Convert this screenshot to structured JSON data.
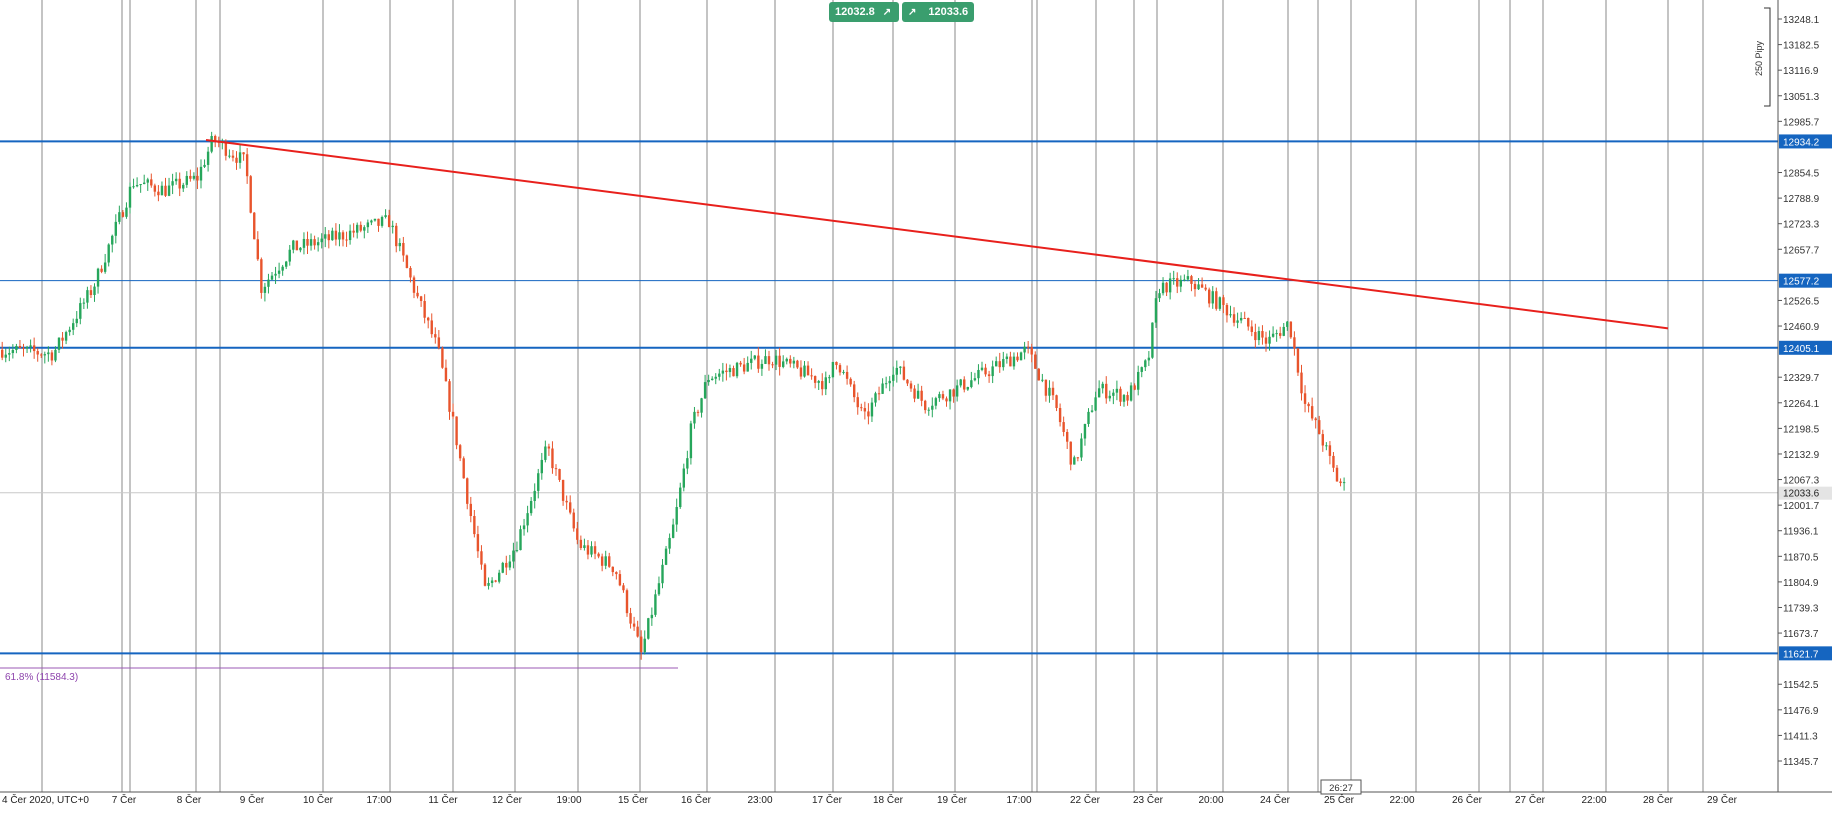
{
  "quote_bar": {
    "bid": "12032.8",
    "ask": "12033.6",
    "sell_icon": "arrow-up-right-icon",
    "buy_icon": "arrow-up-right-icon"
  },
  "scale_bar": {
    "label": "250 Pipy"
  },
  "countdown": "26:27",
  "fib_label": "61.8% (11584.3)",
  "chart_data": {
    "type": "candlestick",
    "title": "",
    "y_axis": {
      "range": [
        11300,
        13290
      ],
      "ticks": [
        "13248.1",
        "13182.5",
        "13116.9",
        "13051.3",
        "12985.7",
        "12854.5",
        "12788.9",
        "12723.3",
        "12657.7",
        "12526.5",
        "12460.9",
        "12329.7",
        "12264.1",
        "12198.5",
        "12132.9",
        "12067.3",
        "12001.7",
        "11936.1",
        "11870.5",
        "11804.9",
        "11739.3",
        "11673.7",
        "11542.5",
        "11476.9",
        "11411.3",
        "11345.7"
      ]
    },
    "x_axis": {
      "labels": [
        "4 Čer 2020, UTC+0",
        "7 Čer",
        "8 Čer",
        "9 Čer",
        "10 Čer",
        "17:00",
        "11 Čer",
        "12 Čer",
        "19:00",
        "15 Čer",
        "16 Čer",
        "23:00",
        "17 Čer",
        "18 Čer",
        "19 Čer",
        "17:00",
        "22 Čer",
        "23 Čer",
        "20:00",
        "24 Čer",
        "25 Čer",
        "22:00",
        "26 Čer",
        "27 Čer",
        "22:00",
        "28 Čer",
        "29 Čer"
      ]
    },
    "horizontal_levels": [
      {
        "value": 12934.2,
        "label": "12934.2",
        "color": "#1565c0"
      },
      {
        "value": 12577.2,
        "label": "12577.2",
        "color": "#1565c0"
      },
      {
        "value": 12405.1,
        "label": "12405.1",
        "color": "#1565c0"
      },
      {
        "value": 11621.7,
        "label": "11621.7",
        "color": "#1565c0"
      }
    ],
    "current_price": {
      "value": 12033.6,
      "label": "12033.6"
    },
    "trendline": {
      "from": {
        "date": "8 Čer",
        "value": 12938
      },
      "to": {
        "date": "28 Čer",
        "value": 12455
      },
      "color": "#e8201c"
    },
    "fib_level": {
      "value": 11584.3,
      "ratio": "61.8%",
      "color": "#8e44ad"
    },
    "series_waypoints": [
      {
        "date": "4 Čer",
        "close": 12400
      },
      {
        "date": "5 Čer",
        "close": 12390
      },
      {
        "date": "5 Čer 12:00",
        "close": 12560
      },
      {
        "date": "7 Čer",
        "close": 12830
      },
      {
        "date": "7 Čer 12:00",
        "close": 12810
      },
      {
        "date": "8 Čer",
        "close": 12840
      },
      {
        "date": "8 Čer 06:00",
        "close": 12940
      },
      {
        "date": "8 Čer 18:00",
        "close": 12880
      },
      {
        "date": "9 Čer",
        "close": 12560
      },
      {
        "date": "9 Čer 12:00",
        "close": 12660
      },
      {
        "date": "10 Čer",
        "close": 12680
      },
      {
        "date": "10 Čer 12:00",
        "close": 12730
      },
      {
        "date": "10 Čer 17:00",
        "close": 12540
      },
      {
        "date": "10 Čer 21:00",
        "close": 12400
      },
      {
        "date": "11 Čer",
        "close": 12200
      },
      {
        "date": "11 Čer 12:00",
        "close": 11780
      },
      {
        "date": "12 Čer",
        "close": 11900
      },
      {
        "date": "12 Čer 06:00",
        "close": 12150
      },
      {
        "date": "12 Čer 12:00",
        "close": 11900
      },
      {
        "date": "12 Čer 19:00",
        "close": 11840
      },
      {
        "date": "15 Čer",
        "close": 11620
      },
      {
        "date": "15 Čer 12:00",
        "close": 11960
      },
      {
        "date": "15 Čer 18:00",
        "close": 12200
      },
      {
        "date": "16 Čer",
        "close": 12330
      },
      {
        "date": "16 Čer 12:00",
        "close": 12380
      },
      {
        "date": "16 Čer 23:00",
        "close": 12310
      },
      {
        "date": "17 Čer",
        "close": 12390
      },
      {
        "date": "17 Čer 12:00",
        "close": 12220
      },
      {
        "date": "18 Čer",
        "close": 12360
      },
      {
        "date": "18 Čer 12:00",
        "close": 12260
      },
      {
        "date": "19 Čer",
        "close": 12300
      },
      {
        "date": "19 Čer 12:00",
        "close": 12400
      },
      {
        "date": "19 Čer 17:00",
        "close": 12250
      },
      {
        "date": "19 Čer 20:00",
        "close": 12100
      },
      {
        "date": "22 Čer",
        "close": 12300
      },
      {
        "date": "22 Čer 12:00",
        "close": 12280
      },
      {
        "date": "22 Čer 20:00",
        "close": 12370
      },
      {
        "date": "23 Čer",
        "close": 12560
      },
      {
        "date": "23 Čer 06:00",
        "close": 12575
      },
      {
        "date": "23 Čer 20:00",
        "close": 12420
      },
      {
        "date": "24 Čer",
        "close": 12470
      },
      {
        "date": "24 Čer 06:00",
        "close": 12260
      },
      {
        "date": "24 Čer 12:00",
        "close": 12180
      },
      {
        "date": "24 Čer 18:00",
        "close": 12070
      },
      {
        "date": "24 Čer 23:00",
        "close": 12033.6
      }
    ],
    "up_color": "#26a65b",
    "down_color": "#e8542c",
    "grid": "vertical-only"
  }
}
